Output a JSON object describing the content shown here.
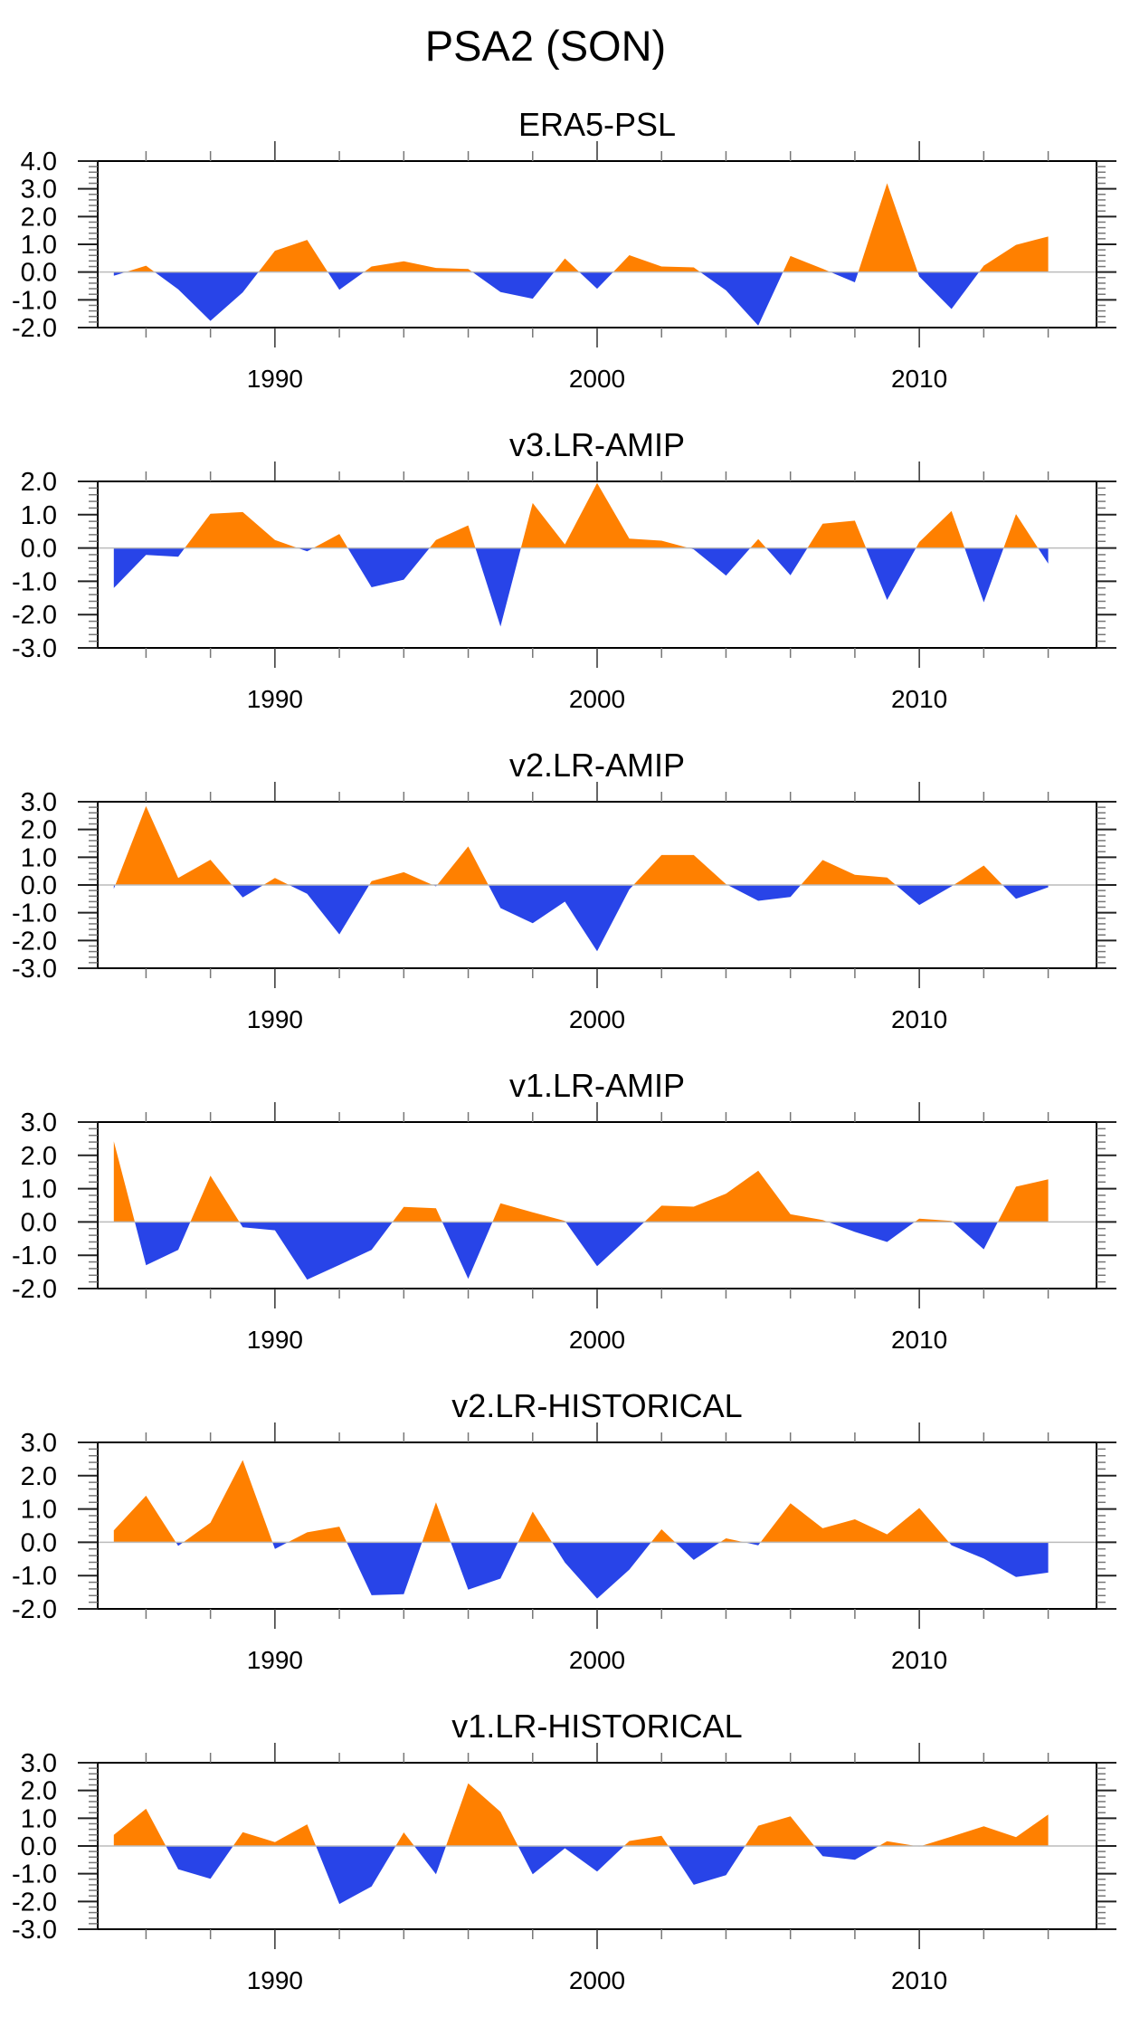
{
  "figure": {
    "title": "PSA2 (SON)",
    "colors": {
      "positive": "#FF8000",
      "negative": "#2844E8",
      "zero_line": "#BBBBBB",
      "frame": "#000000"
    }
  },
  "chart_data": [
    {
      "type": "area",
      "title": "ERA5-PSL",
      "x": [
        1985,
        1986,
        1987,
        1988,
        1989,
        1990,
        1991,
        1992,
        1993,
        1994,
        1995,
        1996,
        1997,
        1998,
        1999,
        2000,
        2001,
        2002,
        2003,
        2004,
        2005,
        2006,
        2007,
        2008,
        2009,
        2010,
        2011,
        2012,
        2013,
        2014
      ],
      "values": [
        -0.13,
        0.23,
        -0.62,
        -1.76,
        -0.73,
        0.77,
        1.16,
        -0.64,
        0.2,
        0.39,
        0.15,
        0.11,
        -0.72,
        -0.96,
        0.49,
        -0.6,
        0.61,
        0.2,
        0.17,
        -0.66,
        -1.93,
        0.58,
        0.12,
        -0.37,
        3.2,
        -0.16,
        -1.33,
        0.23,
        0.98,
        1.28
      ],
      "xlim": [
        1984.5,
        2015.5
      ],
      "ylim": [
        -2.0,
        4.0
      ],
      "yticks": [
        "4.0",
        "3.0",
        "2.0",
        "1.0",
        "0.0",
        "-1.0",
        "-2.0"
      ],
      "xticks": [
        "1990",
        "2000",
        "2010"
      ],
      "xlabel": "",
      "ylabel": "",
      "grid": false
    },
    {
      "type": "area",
      "title": "v3.LR-AMIP",
      "x": [
        1985,
        1986,
        1987,
        1988,
        1989,
        1990,
        1991,
        1992,
        1993,
        1994,
        1995,
        1996,
        1997,
        1998,
        1999,
        2000,
        2001,
        2002,
        2003,
        2004,
        2005,
        2006,
        2007,
        2008,
        2009,
        2010,
        2011,
        2012,
        2013,
        2014
      ],
      "values": [
        -1.2,
        -0.21,
        -0.26,
        1.03,
        1.08,
        0.24,
        -0.1,
        0.42,
        -1.18,
        -0.95,
        0.24,
        0.68,
        -2.36,
        1.35,
        0.11,
        1.95,
        0.28,
        0.22,
        -0.04,
        -0.83,
        0.27,
        -0.82,
        0.73,
        0.82,
        -1.56,
        0.18,
        1.11,
        -1.63,
        1.02,
        -0.47
      ],
      "xlim": [
        1984.5,
        2015.5
      ],
      "ylim": [
        -3.0,
        2.0
      ],
      "yticks": [
        "2.0",
        "1.0",
        "0.0",
        "-1.0",
        "-2.0",
        "-3.0"
      ],
      "xticks": [
        "1990",
        "2000",
        "2010"
      ],
      "xlabel": "",
      "ylabel": "",
      "grid": false
    },
    {
      "type": "area",
      "title": "v2.LR-AMIP",
      "x": [
        1985,
        1986,
        1987,
        1988,
        1989,
        1990,
        1991,
        1992,
        1993,
        1994,
        1995,
        1996,
        1997,
        1998,
        1999,
        2000,
        2001,
        2002,
        2003,
        2004,
        2005,
        2006,
        2007,
        2008,
        2009,
        2010,
        2011,
        2012,
        2013,
        2014
      ],
      "values": [
        -0.14,
        2.84,
        0.25,
        0.91,
        -0.45,
        0.25,
        -0.32,
        -1.78,
        0.14,
        0.46,
        -0.05,
        1.39,
        -0.83,
        -1.38,
        -0.6,
        -2.39,
        -0.16,
        1.08,
        1.08,
        0.03,
        -0.57,
        -0.43,
        0.9,
        0.37,
        0.27,
        -0.72,
        -0.05,
        0.7,
        -0.5,
        -0.08
      ],
      "xlim": [
        1984.5,
        2015.5
      ],
      "ylim": [
        -3.0,
        3.0
      ],
      "yticks": [
        "3.0",
        "2.0",
        "1.0",
        "0.0",
        "-1.0",
        "-2.0",
        "-3.0"
      ],
      "xticks": [
        "1990",
        "2000",
        "2010"
      ],
      "xlabel": "",
      "ylabel": "",
      "grid": false
    },
    {
      "type": "area",
      "title": "v1.LR-AMIP",
      "x": [
        1985,
        1986,
        1987,
        1988,
        1989,
        1990,
        1991,
        1992,
        1993,
        1994,
        1995,
        1996,
        1997,
        1998,
        1999,
        2000,
        2001,
        2002,
        2003,
        2004,
        2005,
        2006,
        2007,
        2008,
        2009,
        2010,
        2011,
        2012,
        2013,
        2014
      ],
      "values": [
        2.42,
        -1.3,
        -0.84,
        1.39,
        -0.16,
        -0.25,
        -1.73,
        -1.29,
        -0.84,
        0.45,
        0.41,
        -1.71,
        0.56,
        0.29,
        0.03,
        -1.33,
        -0.43,
        0.49,
        0.46,
        0.85,
        1.54,
        0.23,
        0.06,
        -0.3,
        -0.6,
        0.1,
        0.03,
        -0.82,
        1.06,
        1.28
      ],
      "xlim": [
        1984.5,
        2015.5
      ],
      "ylim": [
        -2.0,
        3.0
      ],
      "yticks": [
        "3.0",
        "2.0",
        "1.0",
        "0.0",
        "-1.0",
        "-2.0"
      ],
      "xticks": [
        "1990",
        "2000",
        "2010"
      ],
      "xlabel": "",
      "ylabel": "",
      "grid": false
    },
    {
      "type": "area",
      "title": "v2.LR-HISTORICAL",
      "x": [
        1985,
        1986,
        1987,
        1988,
        1989,
        1990,
        1991,
        1992,
        1993,
        1994,
        1995,
        1996,
        1997,
        1998,
        1999,
        2000,
        2001,
        2002,
        2003,
        2004,
        2005,
        2006,
        2007,
        2008,
        2009,
        2010,
        2011,
        2012,
        2013,
        2014
      ],
      "values": [
        0.36,
        1.4,
        -0.11,
        0.59,
        2.47,
        -0.2,
        0.3,
        0.47,
        -1.59,
        -1.56,
        1.2,
        -1.42,
        -1.09,
        0.92,
        -0.61,
        -1.69,
        -0.82,
        0.39,
        -0.53,
        0.12,
        -0.09,
        1.17,
        0.42,
        0.69,
        0.24,
        1.03,
        -0.09,
        -0.49,
        -1.04,
        -0.91
      ],
      "xlim": [
        1984.5,
        2015.5
      ],
      "ylim": [
        -2.0,
        3.0
      ],
      "yticks": [
        "3.0",
        "2.0",
        "1.0",
        "0.0",
        "-1.0",
        "-2.0"
      ],
      "xticks": [
        "1990",
        "2000",
        "2010"
      ],
      "xlabel": "",
      "ylabel": "",
      "grid": false
    },
    {
      "type": "area",
      "title": "v1.LR-HISTORICAL",
      "x": [
        1985,
        1986,
        1987,
        1988,
        1989,
        1990,
        1991,
        1992,
        1993,
        1994,
        1995,
        1996,
        1997,
        1998,
        1999,
        2000,
        2001,
        2002,
        2003,
        2004,
        2005,
        2006,
        2007,
        2008,
        2009,
        2010,
        2011,
        2012,
        2013,
        2014
      ],
      "values": [
        0.4,
        1.34,
        -0.84,
        -1.18,
        0.5,
        0.14,
        0.78,
        -2.09,
        -1.46,
        0.49,
        -1.02,
        2.26,
        1.23,
        -1.02,
        -0.08,
        -0.92,
        0.18,
        0.37,
        -1.4,
        -1.05,
        0.73,
        1.07,
        -0.37,
        -0.5,
        0.17,
        -0.02,
        0.34,
        0.71,
        0.32,
        1.13
      ],
      "xlim": [
        1984.5,
        2015.5
      ],
      "ylim": [
        -3.0,
        3.0
      ],
      "yticks": [
        "3.0",
        "2.0",
        "1.0",
        "0.0",
        "-1.0",
        "-2.0",
        "-3.0"
      ],
      "xticks": [
        "1990",
        "2000",
        "2010"
      ],
      "xlabel": "",
      "ylabel": "",
      "grid": false
    }
  ]
}
